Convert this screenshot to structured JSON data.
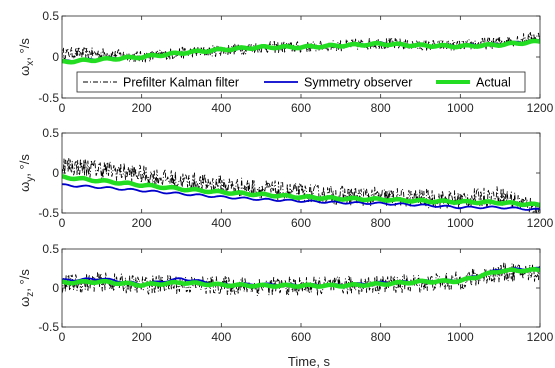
{
  "colors": {
    "prefilter": "#000000",
    "symmetry": "#0000cc",
    "actual": "#22dd22",
    "axis": "#262626"
  },
  "figure": {
    "xlabel": "Time, s"
  },
  "legend": [
    "Prefilter Kalman filter",
    "Symmetry observer",
    "Actual"
  ],
  "chart_data": [
    {
      "type": "line",
      "ylabel": "ω_x, °/s",
      "ylabel_sub": "x",
      "xlim": [
        0,
        1200
      ],
      "ylim": [
        -0.5,
        0.5
      ],
      "xticks": [
        0,
        200,
        400,
        600,
        800,
        1000,
        1200
      ],
      "yticks": [
        -0.5,
        0,
        0.5
      ],
      "legend_position": "bottom",
      "x": [
        0,
        100,
        200,
        300,
        400,
        500,
        600,
        700,
        800,
        900,
        1000,
        1100,
        1200
      ],
      "series": [
        {
          "name": "Prefilter Kalman filter",
          "values": [
            0.05,
            0.04,
            0.0,
            0.05,
            0.08,
            0.12,
            0.12,
            0.14,
            0.17,
            0.14,
            0.14,
            0.18,
            0.25
          ],
          "noise": 0.07
        },
        {
          "name": "Symmetry observer",
          "values": [
            -0.05,
            -0.02,
            0.0,
            0.05,
            0.08,
            0.12,
            0.12,
            0.14,
            0.17,
            0.14,
            0.14,
            0.16,
            0.2
          ]
        },
        {
          "name": "Actual",
          "values": [
            -0.06,
            -0.03,
            0.0,
            0.05,
            0.09,
            0.12,
            0.12,
            0.14,
            0.16,
            0.14,
            0.13,
            0.15,
            0.19
          ]
        }
      ]
    },
    {
      "type": "line",
      "ylabel": "ω_y, °/s",
      "ylabel_sub": "y",
      "xlim": [
        0,
        1200
      ],
      "ylim": [
        -0.5,
        0.5
      ],
      "xticks": [
        0,
        200,
        400,
        600,
        800,
        1000,
        1200
      ],
      "yticks": [
        -0.5,
        0,
        0.5
      ],
      "x": [
        0,
        100,
        200,
        300,
        400,
        500,
        600,
        700,
        800,
        900,
        1000,
        1100,
        1200
      ],
      "series": [
        {
          "name": "Prefilter Kalman filter",
          "values": [
            0.1,
            0.05,
            -0.02,
            -0.1,
            -0.15,
            -0.2,
            -0.25,
            -0.28,
            -0.3,
            -0.32,
            -0.33,
            -0.28,
            -0.45
          ],
          "noise": 0.12
        },
        {
          "name": "Symmetry observer",
          "values": [
            -0.15,
            -0.18,
            -0.22,
            -0.26,
            -0.3,
            -0.33,
            -0.35,
            -0.37,
            -0.38,
            -0.4,
            -0.43,
            -0.43,
            -0.46
          ]
        },
        {
          "name": "Actual",
          "values": [
            -0.05,
            -0.1,
            -0.15,
            -0.2,
            -0.24,
            -0.27,
            -0.3,
            -0.32,
            -0.33,
            -0.35,
            -0.36,
            -0.37,
            -0.4
          ]
        }
      ]
    },
    {
      "type": "line",
      "ylabel": "ω_z, °/s",
      "ylabel_sub": "z",
      "xlim": [
        0,
        1200
      ],
      "ylim": [
        -0.5,
        0.5
      ],
      "xticks": [
        0,
        200,
        400,
        600,
        800,
        1000,
        1200
      ],
      "yticks": [
        -0.5,
        0,
        0.5
      ],
      "x": [
        0,
        100,
        200,
        300,
        400,
        500,
        600,
        700,
        800,
        900,
        1000,
        1100,
        1200
      ],
      "series": [
        {
          "name": "Prefilter Kalman filter",
          "values": [
            0.05,
            0.08,
            0.04,
            0.05,
            0.03,
            0.02,
            0.02,
            0.03,
            0.05,
            0.06,
            0.09,
            0.2,
            0.2
          ],
          "noise": 0.12
        },
        {
          "name": "Symmetry observer",
          "values": [
            0.1,
            0.12,
            0.05,
            0.12,
            0.05,
            0.05,
            0.04,
            0.04,
            0.07,
            0.09,
            0.1,
            0.24,
            0.25
          ]
        },
        {
          "name": "Actual",
          "values": [
            0.07,
            0.08,
            0.04,
            0.07,
            0.04,
            0.03,
            0.03,
            0.03,
            0.05,
            0.08,
            0.09,
            0.22,
            0.23
          ]
        }
      ]
    }
  ]
}
